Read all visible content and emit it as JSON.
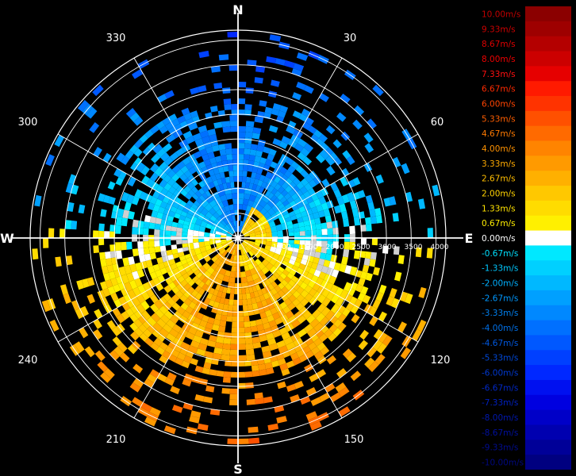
{
  "chart_data": {
    "type": "polar-heatmap",
    "variable": "radial velocity (m/s)",
    "compass": [
      "N",
      "E",
      "S",
      "W"
    ],
    "azimuth_labels": [
      "30",
      "60",
      "120",
      "150",
      "210",
      "240",
      "300",
      "330"
    ],
    "range_labels": [
      "1000",
      "1500",
      "2000",
      "2500",
      "3000",
      "3500",
      "4000"
    ],
    "range_max": 4200,
    "grid": true,
    "colorbar": {
      "position": "right",
      "entries": [
        {
          "label": "10.00m/s",
          "color": "#8b0000",
          "text_color": "#c00000"
        },
        {
          "label": "9.33m/s",
          "color": "#9e0000",
          "text_color": "#cc0000"
        },
        {
          "label": "8.67m/s",
          "color": "#b40000",
          "text_color": "#dd0000"
        },
        {
          "label": "8.00m/s",
          "color": "#cc0000",
          "text_color": "#ee0000"
        },
        {
          "label": "7.33m/s",
          "color": "#e60000",
          "text_color": "#ff1010"
        },
        {
          "label": "6.67m/s",
          "color": "#ff1a00",
          "text_color": "#ff2a00"
        },
        {
          "label": "6.00m/s",
          "color": "#ff3300",
          "text_color": "#ff4400"
        },
        {
          "label": "5.33m/s",
          "color": "#ff5000",
          "text_color": "#ff5e00"
        },
        {
          "label": "4.67m/s",
          "color": "#ff6a00",
          "text_color": "#ff7a00"
        },
        {
          "label": "4.00m/s",
          "color": "#ff8400",
          "text_color": "#ff9200"
        },
        {
          "label": "3.33m/s",
          "color": "#ff9a00",
          "text_color": "#ffaa00"
        },
        {
          "label": "2.67m/s",
          "color": "#ffb000",
          "text_color": "#ffbe00"
        },
        {
          "label": "2.00m/s",
          "color": "#ffc800",
          "text_color": "#ffd200"
        },
        {
          "label": "1.33m/s",
          "color": "#ffdc00",
          "text_color": "#ffe200"
        },
        {
          "label": "0.67m/s",
          "color": "#fff000",
          "text_color": "#ffee00"
        },
        {
          "label": "0.00m/s",
          "color": "#ffffff",
          "text_color": "#ffffff"
        },
        {
          "label": "-0.67m/s",
          "color": "#00e8ff",
          "text_color": "#00e0ff"
        },
        {
          "label": "-1.33m/s",
          "color": "#00d0ff",
          "text_color": "#00c8ff"
        },
        {
          "label": "-2.00m/s",
          "color": "#00b8ff",
          "text_color": "#00b0ff"
        },
        {
          "label": "-2.67m/s",
          "color": "#00a0ff",
          "text_color": "#0098ff"
        },
        {
          "label": "-3.33m/s",
          "color": "#0088ff",
          "text_color": "#0080f0"
        },
        {
          "label": "-4.00m/s",
          "color": "#0070ff",
          "text_color": "#0070e8"
        },
        {
          "label": "-4.67m/s",
          "color": "#0058ff",
          "text_color": "#0058e0"
        },
        {
          "label": "-5.33m/s",
          "color": "#0040ff",
          "text_color": "#0048d8"
        },
        {
          "label": "-6.00m/s",
          "color": "#0028ff",
          "text_color": "#0038d0"
        },
        {
          "label": "-6.67m/s",
          "color": "#0010f0",
          "text_color": "#0028c8"
        },
        {
          "label": "-7.33m/s",
          "color": "#0000e0",
          "text_color": "#0020c0"
        },
        {
          "label": "-8.00m/s",
          "color": "#0000c8",
          "text_color": "#0018b0"
        },
        {
          "label": "-8.67m/s",
          "color": "#0000b0",
          "text_color": "#0010a0"
        },
        {
          "label": "-9.33m/s",
          "color": "#000098",
          "text_color": "#000c90"
        },
        {
          "label": "-10.00m/s",
          "color": "#000080",
          "text_color": "#000880"
        }
      ]
    }
  }
}
